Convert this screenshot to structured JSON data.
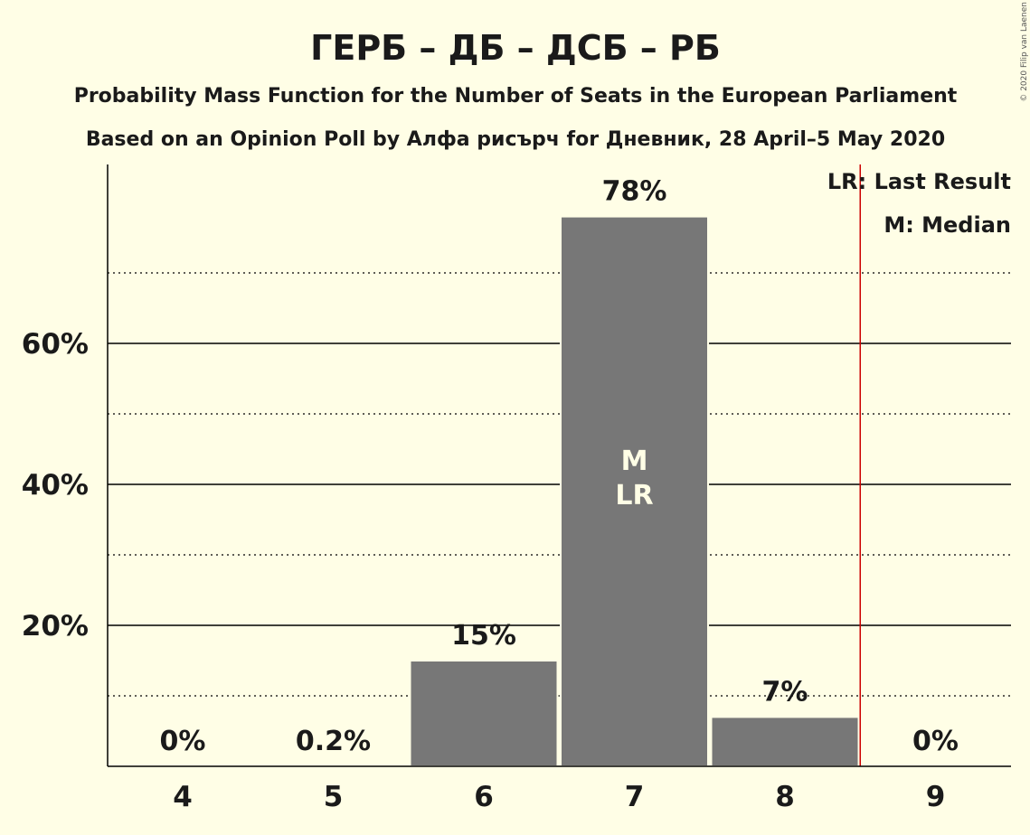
{
  "chart_data": {
    "type": "bar",
    "title": "ГЕРБ – ДБ – ДСБ – РБ",
    "subtitle": "Probability Mass Function for the Number of Seats in the European Parliament",
    "subtitle2": "Based on an Opinion Poll by Алфа рисърч for Дневник, 28 April–5 May 2020",
    "categories": [
      "4",
      "5",
      "6",
      "7",
      "8",
      "9"
    ],
    "values": [
      0,
      0.2,
      15,
      78,
      7,
      0
    ],
    "value_labels": [
      "0%",
      "0.2%",
      "15%",
      "78%",
      "7%",
      "0%"
    ],
    "ylim": [
      0,
      85
    ],
    "yticks": [
      20,
      40,
      60
    ],
    "ytick_labels": [
      "20%",
      "40%",
      "60%"
    ],
    "minor_gridlines": [
      10,
      30,
      50,
      70
    ],
    "median_category": "7",
    "last_result_category": "7",
    "median_marker": "M",
    "last_result_marker": "LR",
    "threshold_line_after_category": "8",
    "legend": [
      "LR: Last Result",
      "M: Median"
    ],
    "legend_position": "top-right",
    "copyright": "© 2020 Filip van Laenen",
    "colors": {
      "bar": "#777777",
      "background": "#FFFEE6",
      "text": "#1a1a1a",
      "threshold_line": "#cc0000",
      "grid": "#000000"
    }
  }
}
